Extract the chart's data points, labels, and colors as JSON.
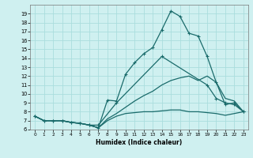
{
  "xlabel": "Humidex (Indice chaleur)",
  "xlim": [
    -0.5,
    23.5
  ],
  "ylim": [
    6,
    20
  ],
  "yticks": [
    6,
    7,
    8,
    9,
    10,
    11,
    12,
    13,
    14,
    15,
    16,
    17,
    18,
    19
  ],
  "xticks": [
    0,
    1,
    2,
    3,
    4,
    5,
    6,
    7,
    8,
    9,
    10,
    11,
    12,
    13,
    14,
    15,
    16,
    17,
    18,
    19,
    20,
    21,
    22,
    23
  ],
  "background_color": "#cff0f0",
  "grid_color": "#aadddd",
  "line_color": "#1a6b6b",
  "line1_x": [
    0,
    1,
    2,
    3,
    4,
    5,
    6,
    7,
    8,
    9,
    10,
    11,
    12,
    13,
    14,
    15,
    16,
    17,
    18,
    19,
    20,
    21,
    22,
    23
  ],
  "line1_y": [
    7.5,
    7.0,
    7.0,
    7.0,
    6.8,
    6.7,
    6.5,
    6.2,
    9.3,
    9.2,
    12.2,
    13.5,
    14.5,
    15.2,
    17.2,
    19.3,
    18.7,
    16.8,
    16.5,
    14.2,
    11.3,
    8.8,
    9.0,
    8.0
  ],
  "line2_x": [
    0,
    1,
    2,
    3,
    4,
    5,
    6,
    7,
    9,
    14,
    19,
    20,
    21,
    22,
    23
  ],
  "line2_y": [
    7.5,
    7.0,
    7.0,
    7.0,
    6.8,
    6.7,
    6.5,
    6.5,
    9.0,
    14.2,
    11.0,
    9.5,
    9.0,
    8.8,
    8.0
  ],
  "line3_x": [
    0,
    1,
    2,
    3,
    4,
    5,
    6,
    7,
    8,
    9,
    10,
    11,
    12,
    13,
    14,
    15,
    16,
    17,
    18,
    19,
    20,
    21,
    22,
    23
  ],
  "line3_y": [
    7.5,
    7.0,
    7.0,
    7.0,
    6.8,
    6.7,
    6.5,
    6.2,
    7.2,
    7.8,
    8.5,
    9.2,
    9.8,
    10.3,
    11.0,
    11.5,
    11.8,
    12.0,
    11.5,
    12.0,
    11.3,
    9.5,
    9.2,
    8.0
  ],
  "line4_x": [
    0,
    1,
    2,
    3,
    4,
    5,
    6,
    7,
    8,
    9,
    10,
    11,
    12,
    13,
    14,
    15,
    16,
    17,
    18,
    19,
    20,
    21,
    22,
    23
  ],
  "line4_y": [
    7.5,
    7.0,
    7.0,
    7.0,
    6.8,
    6.7,
    6.5,
    6.2,
    7.0,
    7.5,
    7.8,
    7.9,
    8.0,
    8.0,
    8.1,
    8.2,
    8.2,
    8.0,
    8.0,
    7.9,
    7.8,
    7.6,
    7.8,
    8.0
  ]
}
